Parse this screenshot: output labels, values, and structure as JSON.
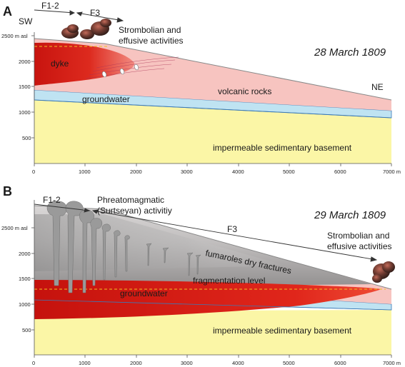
{
  "panel_a": {
    "letter": "A",
    "date": "28 March 1809",
    "left_dir": "SW",
    "right_dir": "NE",
    "fissure_1": "F1-2",
    "fissure_2": "F3",
    "activity": [
      "Strombolian and",
      "effusive activities"
    ],
    "labels": {
      "dyke": "dyke",
      "volcanic": "volcanic rocks",
      "groundwater": "groundwater",
      "basement": "impermeable sedimentary basement"
    },
    "y_ticks": [
      "2500 m asl",
      "2000",
      "1500",
      "1000",
      "500"
    ],
    "x_ticks": [
      "0",
      "1000",
      "2000",
      "3000",
      "4000",
      "5000",
      "6000",
      "7000 m"
    ]
  },
  "panel_b": {
    "letter": "B",
    "date": "29 March 1809",
    "fissure_1": "F1-2",
    "fissure_2": "F3",
    "phreato": [
      "Phreatomagmatic",
      "(Surtseyan) activitiy"
    ],
    "activity": [
      "Strombolian and",
      "effusive activities"
    ],
    "labels": {
      "fumaroles": "fumaroles dry fractures",
      "fragmentation": "fragmentation level",
      "groundwater": "groundwater",
      "basement": "impermeable sedimentary basement"
    },
    "y_ticks": [
      "2500 m asl",
      "2000",
      "1500",
      "1000",
      "500"
    ],
    "x_ticks": [
      "0",
      "1000",
      "2000",
      "3000",
      "4000",
      "5000",
      "6000",
      "7000 m"
    ]
  },
  "colors": {
    "volcanic": "#f7c4c0",
    "groundwater": "#bfe3f2",
    "basement": "#fbf6a6",
    "dyke": "#d9261c",
    "fragmentation_line": "#f0c020"
  }
}
